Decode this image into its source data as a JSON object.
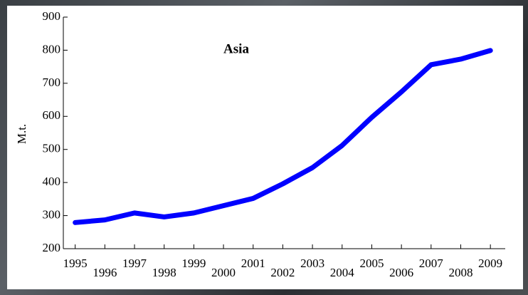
{
  "chart_data": {
    "type": "line",
    "title": "Asia",
    "y_label": "M.t.",
    "x": [
      1995,
      1996,
      1997,
      1998,
      1999,
      2000,
      2001,
      2002,
      2003,
      2004,
      2005,
      2006,
      2007,
      2008,
      2009
    ],
    "series": [
      {
        "name": "Asia",
        "color": "#0000ff",
        "values": [
          279,
          287,
          308,
          296,
          308,
          330,
          352,
          396,
          445,
          512,
          597,
          674,
          756,
          773,
          799
        ]
      }
    ],
    "xlim": [
      1994.6,
      2009.5
    ],
    "xticks": [
      1995,
      1996,
      1997,
      1998,
      1999,
      2000,
      2001,
      2002,
      2003,
      2004,
      2005,
      2006,
      2007,
      2008,
      2009
    ],
    "ylim": [
      200,
      900
    ],
    "yticks": [
      200,
      300,
      400,
      500,
      600,
      700,
      800,
      900
    ]
  }
}
